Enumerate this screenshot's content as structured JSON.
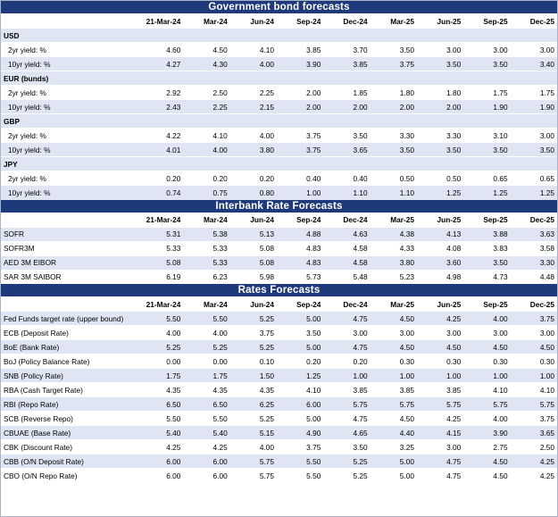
{
  "columns": [
    "21-Mar-24",
    "Mar-24",
    "Jun-24",
    "Sep-24",
    "Dec-24",
    "Mar-25",
    "Jun-25",
    "Sep-25",
    "Dec-25"
  ],
  "sections": {
    "bonds": {
      "title": "Government bond forecasts",
      "groups": [
        {
          "name": "USD",
          "rows": [
            {
              "label": "2yr yield: %",
              "values": [
                "4.60",
                "4.50",
                "4.10",
                "3.85",
                "3.70",
                "3.50",
                "3.00",
                "3.00",
                "3.00"
              ]
            },
            {
              "label": "10yr yield: %",
              "values": [
                "4.27",
                "4.30",
                "4.00",
                "3.90",
                "3.85",
                "3.75",
                "3.50",
                "3.50",
                "3.40"
              ]
            }
          ]
        },
        {
          "name": "EUR (bunds)",
          "rows": [
            {
              "label": "2yr yield: %",
              "values": [
                "2.92",
                "2.50",
                "2.25",
                "2.00",
                "1.85",
                "1.80",
                "1.80",
                "1.75",
                "1.75"
              ]
            },
            {
              "label": "10yr yield: %",
              "values": [
                "2.43",
                "2.25",
                "2.15",
                "2.00",
                "2.00",
                "2.00",
                "2.00",
                "1.90",
                "1.90"
              ]
            }
          ]
        },
        {
          "name": "GBP",
          "rows": [
            {
              "label": "2yr yield: %",
              "values": [
                "4.22",
                "4.10",
                "4.00",
                "3.75",
                "3.50",
                "3.30",
                "3.30",
                "3.10",
                "3.00"
              ]
            },
            {
              "label": "10yr yield: %",
              "values": [
                "4.01",
                "4.00",
                "3.80",
                "3.75",
                "3.65",
                "3.50",
                "3.50",
                "3.50",
                "3.50"
              ]
            }
          ]
        },
        {
          "name": "JPY",
          "rows": [
            {
              "label": "2yr yield: %",
              "values": [
                "0.20",
                "0.20",
                "0.20",
                "0.40",
                "0.40",
                "0.50",
                "0.50",
                "0.65",
                "0.65"
              ]
            },
            {
              "label": "10yr yield: %",
              "values": [
                "0.74",
                "0.75",
                "0.80",
                "1.00",
                "1.10",
                "1.10",
                "1.25",
                "1.25",
                "1.25"
              ]
            }
          ]
        }
      ]
    },
    "interbank": {
      "title": "Interbank Rate Forecasts",
      "rows": [
        {
          "label": "SOFR",
          "values": [
            "5.31",
            "5.38",
            "5.13",
            "4.88",
            "4.63",
            "4.38",
            "4.13",
            "3.88",
            "3.63"
          ]
        },
        {
          "label": "SOFR3M",
          "values": [
            "5.33",
            "5.33",
            "5.08",
            "4.83",
            "4.58",
            "4.33",
            "4.08",
            "3.83",
            "3.58"
          ]
        },
        {
          "label": "AED 3M EIBOR",
          "values": [
            "5.08",
            "5.33",
            "5.08",
            "4.83",
            "4.58",
            "3.80",
            "3.60",
            "3.50",
            "3.30"
          ]
        },
        {
          "label": "SAR 3M SAIBOR",
          "values": [
            "6.19",
            "6.23",
            "5.98",
            "5.73",
            "5.48",
            "5.23",
            "4.98",
            "4.73",
            "4.48"
          ]
        }
      ]
    },
    "rates": {
      "title": "Rates Forecasts",
      "rows": [
        {
          "label": "Fed Funds target rate (upper bound)",
          "values": [
            "5.50",
            "5.50",
            "5.25",
            "5.00",
            "4.75",
            "4.50",
            "4.25",
            "4.00",
            "3.75"
          ]
        },
        {
          "label": "ECB (Deposit Rate)",
          "values": [
            "4.00",
            "4.00",
            "3.75",
            "3.50",
            "3.00",
            "3.00",
            "3.00",
            "3.00",
            "3.00"
          ]
        },
        {
          "label": "BoE (Bank Rate)",
          "values": [
            "5.25",
            "5.25",
            "5.25",
            "5.00",
            "4.75",
            "4.50",
            "4.50",
            "4.50",
            "4.50"
          ]
        },
        {
          "label": "BoJ (Policy Balance Rate)",
          "values": [
            "0.00",
            "0.00",
            "0.10",
            "0.20",
            "0.20",
            "0.30",
            "0.30",
            "0.30",
            "0.30"
          ]
        },
        {
          "label": "SNB (Policy Rate)",
          "values": [
            "1.75",
            "1.75",
            "1.50",
            "1.25",
            "1.00",
            "1.00",
            "1.00",
            "1.00",
            "1.00"
          ]
        },
        {
          "label": "RBA (Cash Target Rate)",
          "values": [
            "4.35",
            "4.35",
            "4.35",
            "4.10",
            "3.85",
            "3.85",
            "3.85",
            "4.10",
            "4.10"
          ]
        },
        {
          "label": "RBI (Repo Rate)",
          "values": [
            "6.50",
            "6.50",
            "6.25",
            "6.00",
            "5.75",
            "5.75",
            "5.75",
            "5.75",
            "5.75"
          ]
        },
        {
          "label": "SCB (Reverse Repo)",
          "values": [
            "5.50",
            "5.50",
            "5.25",
            "5.00",
            "4.75",
            "4.50",
            "4.25",
            "4.00",
            "3.75"
          ]
        },
        {
          "label": "CBUAE (Base Rate)",
          "values": [
            "5.40",
            "5.40",
            "5.15",
            "4.90",
            "4.65",
            "4.40",
            "4.15",
            "3.90",
            "3.65"
          ]
        },
        {
          "label": "CBK (Discount Rate)",
          "values": [
            "4.25",
            "4.25",
            "4.00",
            "3.75",
            "3.50",
            "3.25",
            "3.00",
            "2.75",
            "2.50"
          ]
        },
        {
          "label": "CBB (O/N Deposit Rate)",
          "values": [
            "6.00",
            "6.00",
            "5.75",
            "5.50",
            "5.25",
            "5.00",
            "4.75",
            "4.50",
            "4.25"
          ]
        },
        {
          "label": "CBO (O/N Repo Rate)",
          "values": [
            "6.00",
            "6.00",
            "5.75",
            "5.50",
            "5.25",
            "5.00",
            "4.75",
            "4.50",
            "4.25"
          ]
        }
      ]
    }
  }
}
